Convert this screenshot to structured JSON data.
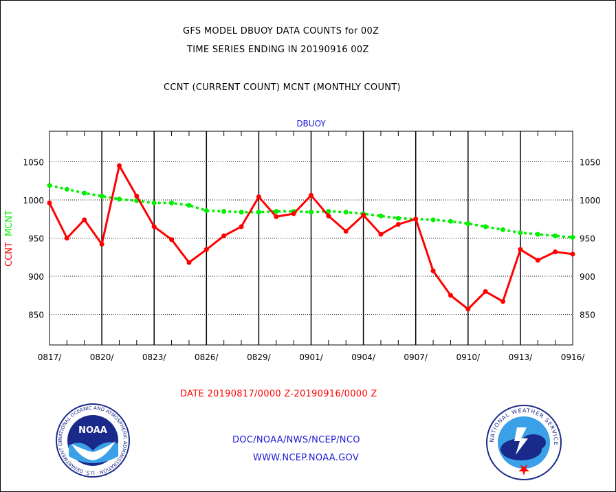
{
  "titles": {
    "line1": "GFS MODEL DBUOY DATA COUNTS for 00Z",
    "line2": "TIME SERIES ENDING IN 20190916 00Z",
    "line3": "CCNT (CURRENT COUNT) MCNT (MONTHLY COUNT)"
  },
  "footer": {
    "date_range": "DATE 20190817/0000 Z-20190916/0000 Z",
    "org": "DOC/NOAA/NWS/NCEP/NCO",
    "url": "WWW.NCEP.NOAA.GOV"
  },
  "logos": {
    "left_text": "NOAA",
    "left_ring": "NATIONAL OCEANIC AND ATMOSPHERIC ADMINISTRATION · U.S. DEPARTMENT OF COMMERCE",
    "right_ring": "NATIONAL WEATHER SERVICE"
  },
  "colors": {
    "ccnt": "#ff0000",
    "mcnt": "#00ee00",
    "header": "#1a1ad6"
  },
  "chart_data": {
    "type": "line",
    "title": "DBUOY",
    "ylabel_ccnt": "CCNT",
    "ylabel_mcnt": "MCNT",
    "ylim": [
      810,
      1090
    ],
    "yticks": [
      850,
      900,
      950,
      1000,
      1050
    ],
    "xticks": [
      "0817/",
      "0820/",
      "0823/",
      "0826/",
      "0829/",
      "0901/",
      "0904/",
      "0907/",
      "0910/",
      "0913/",
      "0916/"
    ],
    "x_days": 30,
    "grid": true,
    "series": [
      {
        "name": "CCNT",
        "values": [
          996,
          950,
          974,
          942,
          1045,
          1005,
          965,
          948,
          918,
          935,
          953,
          965,
          1004,
          978,
          982,
          1006,
          979,
          959,
          980,
          955,
          968,
          975,
          907,
          875,
          857,
          880,
          867,
          935,
          921,
          932,
          929
        ]
      },
      {
        "name": "MCNT",
        "values": [
          1019,
          1014,
          1009,
          1005,
          1001,
          999,
          996,
          996,
          993,
          986,
          985,
          984,
          984,
          985,
          985,
          984,
          985,
          984,
          982,
          979,
          976,
          975,
          974,
          972,
          969,
          965,
          961,
          957,
          955,
          953,
          951
        ]
      }
    ]
  }
}
